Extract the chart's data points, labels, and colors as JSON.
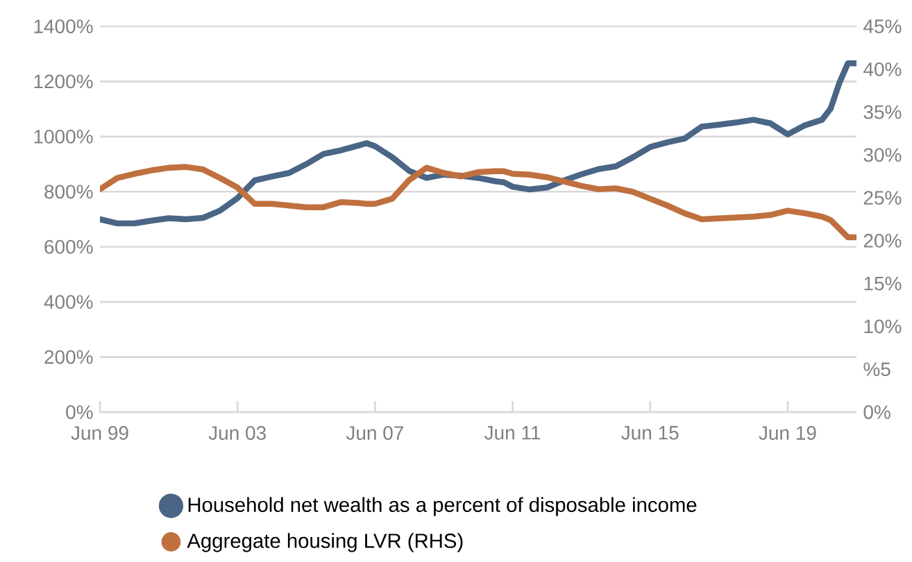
{
  "chart_data": {
    "type": "line",
    "x": [
      "1999-06",
      "1999-12",
      "2000-06",
      "2000-12",
      "2001-06",
      "2001-12",
      "2002-06",
      "2002-12",
      "2003-06",
      "2003-12",
      "2004-06",
      "2004-12",
      "2005-06",
      "2005-12",
      "2006-06",
      "2006-12",
      "2007-03",
      "2007-06",
      "2007-12",
      "2008-06",
      "2008-12",
      "2009-06",
      "2009-12",
      "2010-06",
      "2010-12",
      "2011-03",
      "2011-06",
      "2011-12",
      "2012-06",
      "2012-12",
      "2013-06",
      "2013-12",
      "2014-06",
      "2014-12",
      "2015-06",
      "2015-12",
      "2016-06",
      "2016-12",
      "2017-06",
      "2017-12",
      "2018-06",
      "2018-12",
      "2019-06",
      "2019-12",
      "2020-06",
      "2020-09",
      "2020-12",
      "2021-03",
      "2021-06"
    ],
    "series": [
      {
        "name": "Household net wealth as a percent of disposable income",
        "color": "#4a6585",
        "axis": "y",
        "values": [
          700,
          685,
          685,
          695,
          704,
          700,
          705,
          732,
          777,
          841,
          855,
          868,
          900,
          937,
          950,
          967,
          976,
          965,
          925,
          875,
          850,
          862,
          858,
          850,
          838,
          834,
          818,
          808,
          815,
          841,
          863,
          882,
          892,
          925,
          962,
          979,
          993,
          1036,
          1043,
          1051,
          1061,
          1048,
          1008,
          1041,
          1061,
          1102,
          1194,
          1266,
          1266
        ]
      },
      {
        "name": "Aggregate housing LVR (RHS)",
        "color": "#c0703f",
        "axis": "y2",
        "values": [
          26.0,
          27.3,
          27.8,
          28.2,
          28.5,
          28.6,
          28.3,
          27.3,
          26.2,
          24.3,
          24.3,
          24.1,
          23.9,
          23.9,
          24.5,
          24.4,
          24.3,
          24.3,
          24.9,
          27.1,
          28.5,
          27.9,
          27.5,
          28.0,
          28.1,
          28.1,
          27.8,
          27.7,
          27.4,
          26.9,
          26.4,
          26.0,
          26.1,
          25.7,
          24.9,
          24.1,
          23.2,
          22.5,
          22.6,
          22.7,
          22.8,
          23.0,
          23.5,
          23.2,
          22.8,
          22.4,
          21.4,
          20.4,
          20.4
        ]
      }
    ],
    "xlim": [
      "1999-06",
      "2021-06"
    ],
    "xticks": [
      {
        "value": "1999-06",
        "label": "Jun 99"
      },
      {
        "value": "2003-06",
        "label": "Jun 03"
      },
      {
        "value": "2007-06",
        "label": "Jun 07"
      },
      {
        "value": "2011-06",
        "label": "Jun 11"
      },
      {
        "value": "2015-06",
        "label": "Jun 15"
      },
      {
        "value": "2019-06",
        "label": "Jun 19"
      }
    ],
    "ylim": [
      0,
      1400
    ],
    "yticks": [
      {
        "value": 0,
        "label": "0%"
      },
      {
        "value": 200,
        "label": "200%"
      },
      {
        "value": 400,
        "label": "400%"
      },
      {
        "value": 600,
        "label": "600%"
      },
      {
        "value": 800,
        "label": "800%"
      },
      {
        "value": 1000,
        "label": "1000%"
      },
      {
        "value": 1200,
        "label": "1200%"
      },
      {
        "value": 1400,
        "label": "1400%"
      }
    ],
    "y2lim": [
      0,
      45
    ],
    "y2ticks": [
      {
        "value": 0,
        "label": "0%"
      },
      {
        "value": 5,
        "label": "%5"
      },
      {
        "value": 10,
        "label": "10%"
      },
      {
        "value": 15,
        "label": "15%"
      },
      {
        "value": 20,
        "label": "20%"
      },
      {
        "value": 25,
        "label": "25%"
      },
      {
        "value": 30,
        "label": "30%"
      },
      {
        "value": 35,
        "label": "35%"
      },
      {
        "value": 40,
        "label": "40%"
      },
      {
        "value": 45,
        "label": "45%"
      }
    ],
    "grid": "y",
    "legend": "bottom",
    "marker": "none",
    "line_style": "solid"
  }
}
